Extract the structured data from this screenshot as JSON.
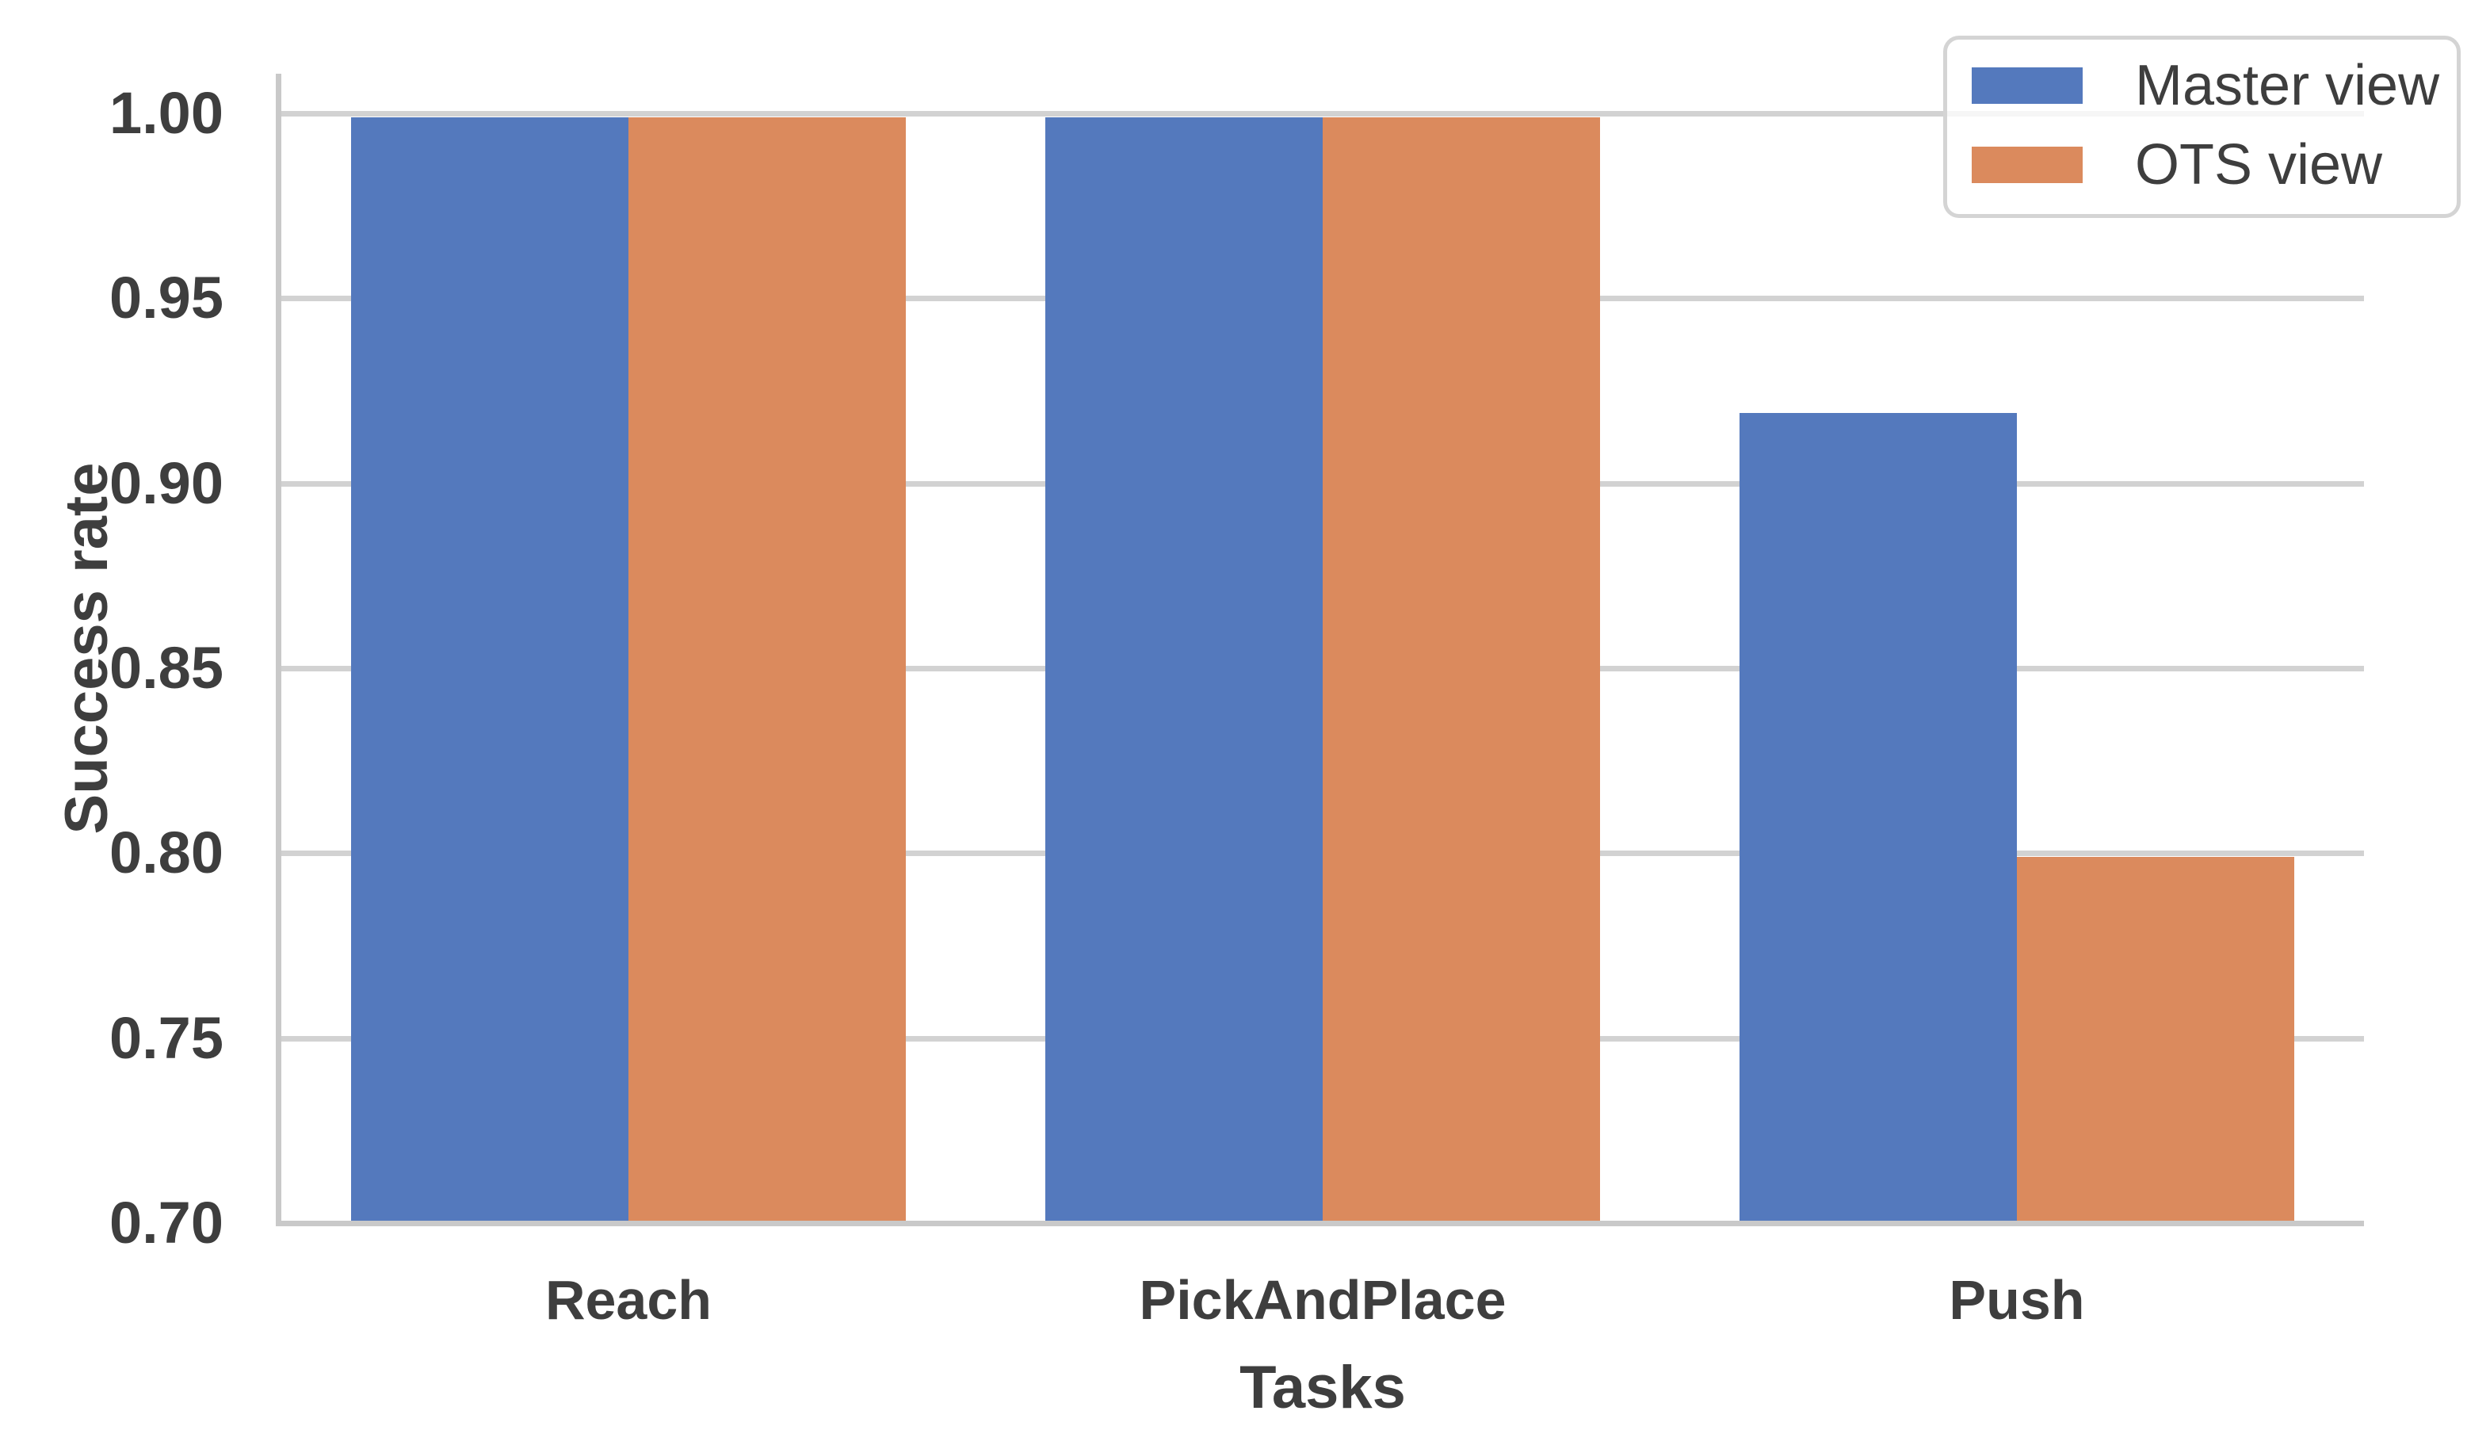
{
  "chart_data": {
    "type": "bar",
    "title": "",
    "categories": [
      "Reach",
      "PickAndPlace",
      "Push"
    ],
    "series": [
      {
        "name": "Master view",
        "color": "#5479BD",
        "values": [
          1.0,
          1.0,
          0.92
        ]
      },
      {
        "name": "OTS view",
        "color": "#DB8A5D",
        "values": [
          1.0,
          1.0,
          0.8
        ]
      }
    ],
    "xlabel": "Tasks",
    "ylabel": "Success rate",
    "ylim": [
      0.7,
      1.0
    ],
    "yticks": [
      0.7,
      0.75,
      0.8,
      0.85,
      0.9,
      0.95,
      1.0
    ],
    "ytick_decimals": 2,
    "grid": "horizontal",
    "legend": {
      "position": "upper right",
      "labels": [
        "Master view",
        "OTS view"
      ]
    }
  },
  "colors": {
    "background": "#FFFFFF",
    "grid": "#D2D2D2",
    "spine": "#C9C9C9",
    "text": "#3E3E3E",
    "legend_border": "#D4D4D4"
  }
}
